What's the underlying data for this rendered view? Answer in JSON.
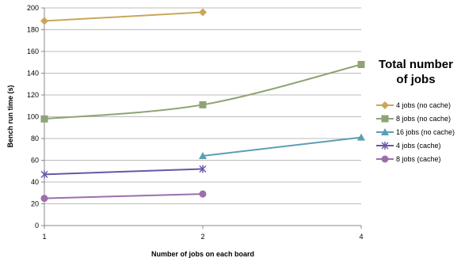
{
  "chart_data": {
    "type": "line",
    "xlabel": "Number of jobs on each board",
    "ylabel": "Bench run time (s)",
    "x_categories": [
      "1",
      "2",
      "4"
    ],
    "ylim": [
      0,
      200
    ],
    "y_ticks": [
      "0",
      "20",
      "40",
      "60",
      "80",
      "100",
      "120",
      "140",
      "160",
      "180",
      "200"
    ],
    "grid": true,
    "legend": {
      "title_line1": "Total number",
      "title_line2": "of jobs",
      "placement": "right"
    },
    "series": [
      {
        "name": "4 jobs (no cache)",
        "color": "#c9a759",
        "marker": "diamond",
        "points": [
          {
            "x": 0,
            "y": 188
          },
          {
            "x": 1,
            "y": 196
          }
        ]
      },
      {
        "name": "8 jobs (no cache)",
        "color": "#8fa374",
        "marker": "square",
        "points": [
          {
            "x": 0,
            "y": 98
          },
          {
            "x": 1,
            "y": 111
          },
          {
            "x": 2,
            "y": 148
          }
        ]
      },
      {
        "name": "16 jobs (no cache)",
        "color": "#5b9fb5",
        "marker": "triangle",
        "points": [
          {
            "x": 1,
            "y": 64
          },
          {
            "x": 2,
            "y": 81
          }
        ]
      },
      {
        "name": "4 jobs (cache)",
        "color": "#6a55a8",
        "marker": "star",
        "points": [
          {
            "x": 0,
            "y": 47
          },
          {
            "x": 1,
            "y": 52
          }
        ]
      },
      {
        "name": "8 jobs (cache)",
        "color": "#9c6fab",
        "marker": "circle",
        "points": [
          {
            "x": 0,
            "y": 25
          },
          {
            "x": 1,
            "y": 29
          }
        ]
      }
    ]
  }
}
